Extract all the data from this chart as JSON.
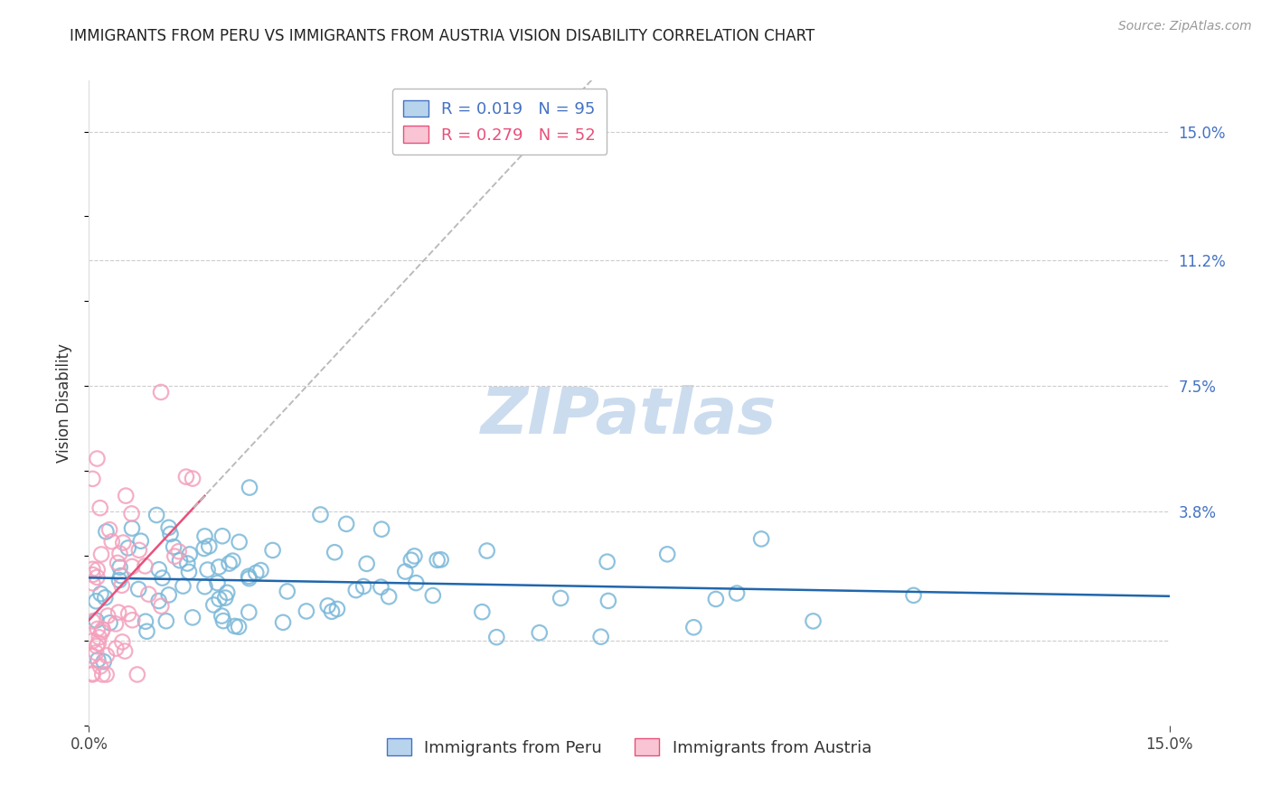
{
  "title": "IMMIGRANTS FROM PERU VS IMMIGRANTS FROM AUSTRIA VISION DISABILITY CORRELATION CHART",
  "source": "Source: ZipAtlas.com",
  "ylabel": "Vision Disability",
  "xlim": [
    0.0,
    0.15
  ],
  "ylim": [
    -0.025,
    0.165
  ],
  "ytick_vals": [
    0.0,
    0.038,
    0.075,
    0.112,
    0.15
  ],
  "ytick_labels_right": [
    "",
    "3.8%",
    "7.5%",
    "11.2%",
    "15.0%"
  ],
  "xtick_vals": [
    0.0,
    0.15
  ],
  "xtick_labels": [
    "0.0%",
    "15.0%"
  ],
  "peru_R": 0.019,
  "peru_N": 95,
  "austria_R": 0.279,
  "austria_N": 52,
  "peru_color": "#7ab8d9",
  "austria_color": "#f4a0bc",
  "peru_line_color": "#2166ac",
  "austria_line_color": "#e8507a",
  "dashed_line_color": "#bbbbbb",
  "background_color": "#ffffff",
  "grid_color": "#cccccc",
  "watermark_text": "ZIPatlas",
  "watermark_color": "#ccdcef",
  "title_fontsize": 12,
  "label_fontsize": 12,
  "right_tick_color": "#4472c4",
  "legend_peru_face": "#b8d4ed",
  "legend_peru_edge": "#4472c4",
  "legend_austria_face": "#f9c5d5",
  "legend_austria_edge": "#e8507a",
  "legend_text_peru": "R = 0.019   N = 95",
  "legend_text_austria": "R = 0.279   N = 52",
  "bottom_legend_peru": "Immigrants from Peru",
  "bottom_legend_austria": "Immigrants from Austria"
}
